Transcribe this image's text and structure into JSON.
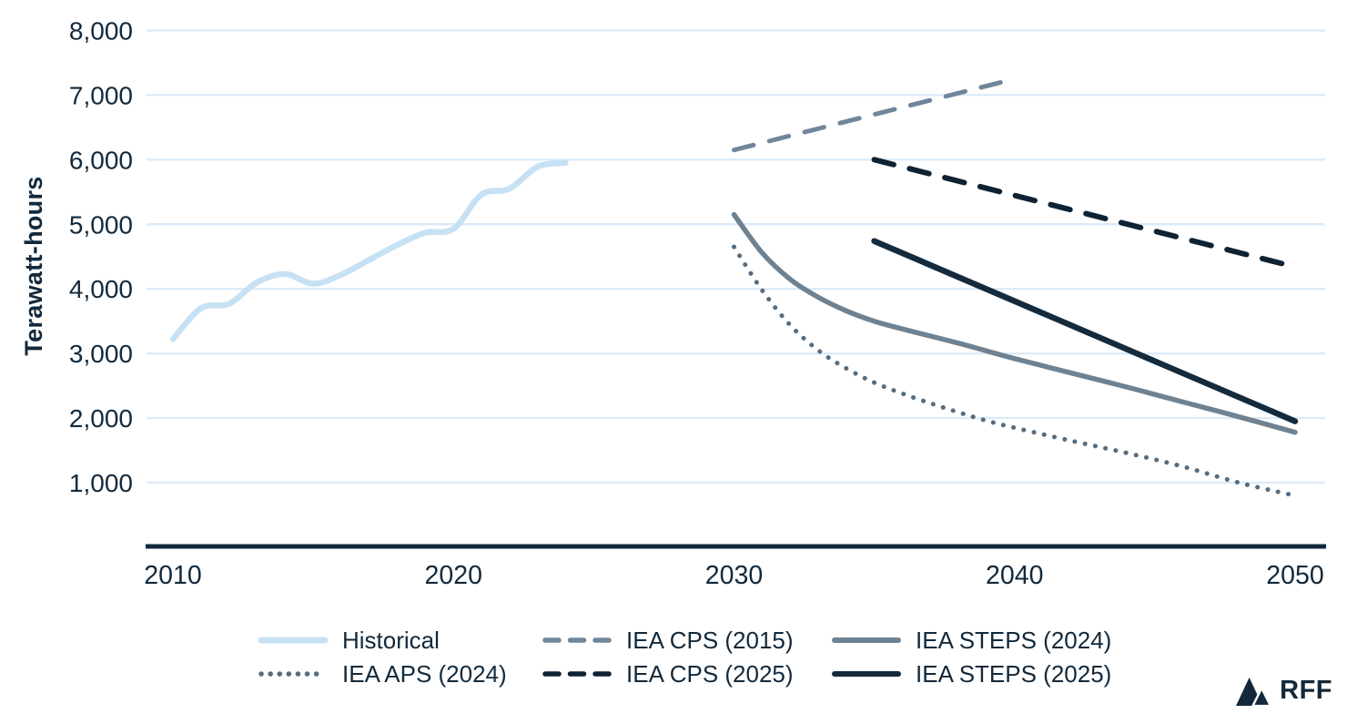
{
  "page": {
    "background": "#ffffff"
  },
  "branding": {
    "logo_text": "RFF",
    "logo_color": "#13293B"
  },
  "chart_data": {
    "type": "line",
    "title": "",
    "xlabel": "",
    "ylabel": "Terawatt-hours",
    "xlim": [
      2010,
      2050
    ],
    "ylim": [
      0,
      8000
    ],
    "grid": true,
    "legend_position": "bottom",
    "colors": {
      "text": "#13293B",
      "axis": "#13293B",
      "gridline": "#DCEBF8",
      "background": "#ffffff"
    },
    "x_ticks": [
      {
        "value": 2010,
        "label": "2010"
      },
      {
        "value": 2020,
        "label": "2020"
      },
      {
        "value": 2030,
        "label": "2030"
      },
      {
        "value": 2040,
        "label": "2040"
      },
      {
        "value": 2050,
        "label": "2050"
      }
    ],
    "y_ticks": [
      {
        "value": 1000,
        "label": "1,000"
      },
      {
        "value": 2000,
        "label": "2,000"
      },
      {
        "value": 3000,
        "label": "3,000"
      },
      {
        "value": 4000,
        "label": "4,000"
      },
      {
        "value": 5000,
        "label": "5,000"
      },
      {
        "value": 6000,
        "label": "6,000"
      },
      {
        "value": 7000,
        "label": "7,000"
      },
      {
        "value": 8000,
        "label": "8,000"
      }
    ],
    "series": [
      {
        "name": "Historical",
        "color": "#C7E1F4",
        "style": "solid",
        "smooth": true,
        "points": [
          [
            2010,
            3220
          ],
          [
            2011,
            3700
          ],
          [
            2012,
            3770
          ],
          [
            2013,
            4100
          ],
          [
            2014,
            4230
          ],
          [
            2015,
            4080
          ],
          [
            2016,
            4220
          ],
          [
            2017,
            4450
          ],
          [
            2018,
            4680
          ],
          [
            2019,
            4870
          ],
          [
            2020,
            4930
          ],
          [
            2021,
            5460
          ],
          [
            2022,
            5550
          ],
          [
            2023,
            5890
          ],
          [
            2024,
            5950
          ]
        ]
      },
      {
        "name": "IEA CPS (2015)",
        "color": "#71869A",
        "style": "dashed",
        "smooth": false,
        "points": [
          [
            2030,
            6150
          ],
          [
            2040,
            7250
          ]
        ]
      },
      {
        "name": "IEA STEPS (2024)",
        "color": "#6F8292",
        "style": "solid",
        "smooth": true,
        "points": [
          [
            2030,
            5150
          ],
          [
            2031,
            4560
          ],
          [
            2032,
            4150
          ],
          [
            2033,
            3870
          ],
          [
            2034,
            3660
          ],
          [
            2035,
            3500
          ],
          [
            2036,
            3380
          ],
          [
            2037,
            3270
          ],
          [
            2038,
            3160
          ],
          [
            2039,
            3040
          ],
          [
            2040,
            2920
          ],
          [
            2042,
            2700
          ],
          [
            2044,
            2480
          ],
          [
            2046,
            2250
          ],
          [
            2048,
            2020
          ],
          [
            2050,
            1780
          ]
        ]
      },
      {
        "name": "IEA APS (2024)",
        "color": "#566C7E",
        "style": "dotted",
        "smooth": true,
        "points": [
          [
            2030,
            4650
          ],
          [
            2031,
            3980
          ],
          [
            2032,
            3440
          ],
          [
            2033,
            3050
          ],
          [
            2034,
            2770
          ],
          [
            2035,
            2550
          ],
          [
            2036,
            2380
          ],
          [
            2037,
            2230
          ],
          [
            2038,
            2090
          ],
          [
            2039,
            1960
          ],
          [
            2040,
            1850
          ],
          [
            2042,
            1650
          ],
          [
            2044,
            1460
          ],
          [
            2046,
            1250
          ],
          [
            2048,
            1000
          ],
          [
            2050,
            800
          ]
        ]
      },
      {
        "name": "IEA CPS (2025)",
        "color": "#0E2233",
        "style": "dashed",
        "smooth": false,
        "points": [
          [
            2035,
            6000
          ],
          [
            2050,
            4340
          ]
        ]
      },
      {
        "name": "IEA STEPS (2025)",
        "color": "#142B3E",
        "style": "solid",
        "smooth": false,
        "points": [
          [
            2035,
            4740
          ],
          [
            2050,
            1950
          ]
        ]
      }
    ]
  }
}
